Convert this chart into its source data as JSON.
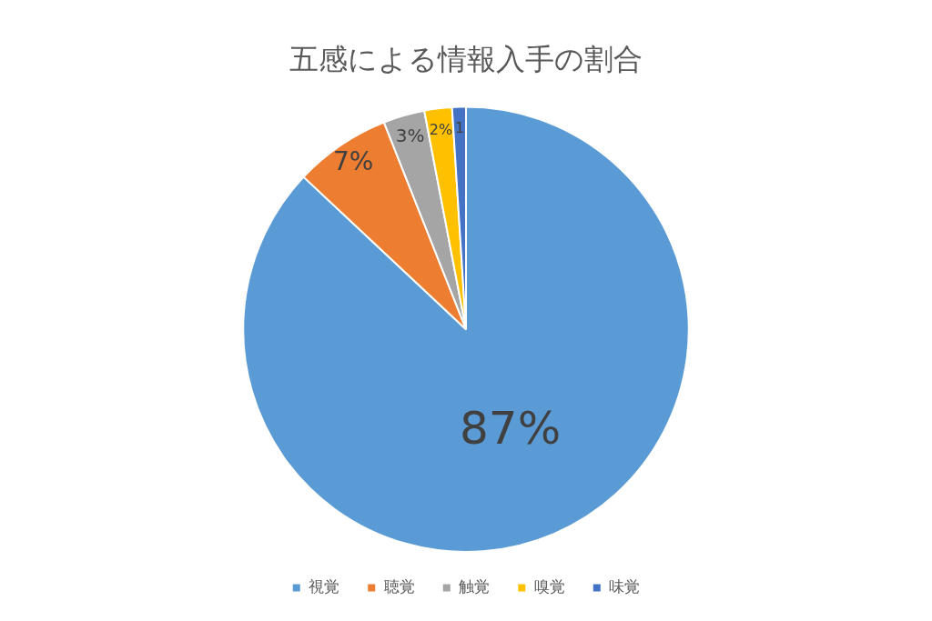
{
  "chart_data": {
    "type": "pie",
    "title": "五感による情報入手の割合",
    "categories": [
      "視覚",
      "聴覚",
      "触覚",
      "嗅覚",
      "味覚"
    ],
    "values": [
      87,
      7,
      3,
      2,
      1
    ],
    "colors": [
      "#5b9bd5",
      "#ed7d31",
      "#a5a5a5",
      "#ffc000",
      "#4472c4"
    ],
    "value_labels": [
      "87%",
      "7%",
      "3%",
      "2%",
      "1"
    ],
    "legend": "bottom"
  }
}
